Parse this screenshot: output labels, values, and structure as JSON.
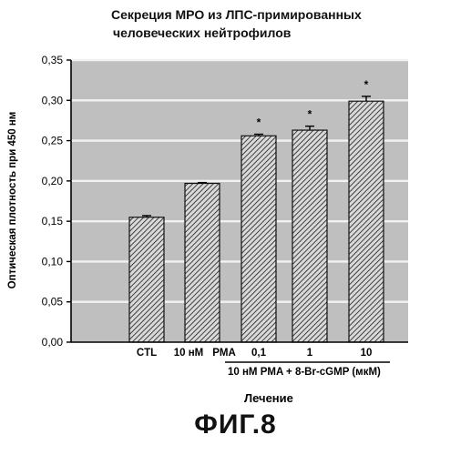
{
  "chart_data": {
    "type": "bar",
    "title_lines": [
      "Секреция МРО из ЛПС-примированных",
      "человеческих нейтрофилов"
    ],
    "ylabel": "Оптическая плотность при 450 нм",
    "xlabel": "Лечение",
    "ylim": [
      0,
      0.35
    ],
    "yticks": [
      "0,00",
      "0,05",
      "0,10",
      "0,15",
      "0,20",
      "0,25",
      "0,30",
      "0,35"
    ],
    "categories": [
      "CTL",
      "10 нМ PMA",
      "0,1",
      "1",
      "10"
    ],
    "category_labels": [
      {
        "text": "CTL"
      },
      {
        "text": "10 нМ"
      },
      {
        "text": "PMA"
      },
      {
        "text": "0,1"
      },
      {
        "text": "1"
      },
      {
        "text": "10"
      }
    ],
    "group_label": "10 нМ PMA + 8-Br-cGMP (мкМ)",
    "values": [
      0.155,
      0.197,
      0.256,
      0.263,
      0.299
    ],
    "errors": [
      0.002,
      0.001,
      0.002,
      0.005,
      0.006
    ],
    "significance": [
      "",
      "",
      "*",
      "*",
      "*"
    ],
    "grid": true,
    "bar_fill": "hatched",
    "colors": {
      "plot_bg": "#bfbfbf",
      "bar": "#d9d9d9",
      "hatch": "#1a1a1a",
      "axis": "#000000"
    }
  },
  "figure_label": "ФИГ.8"
}
